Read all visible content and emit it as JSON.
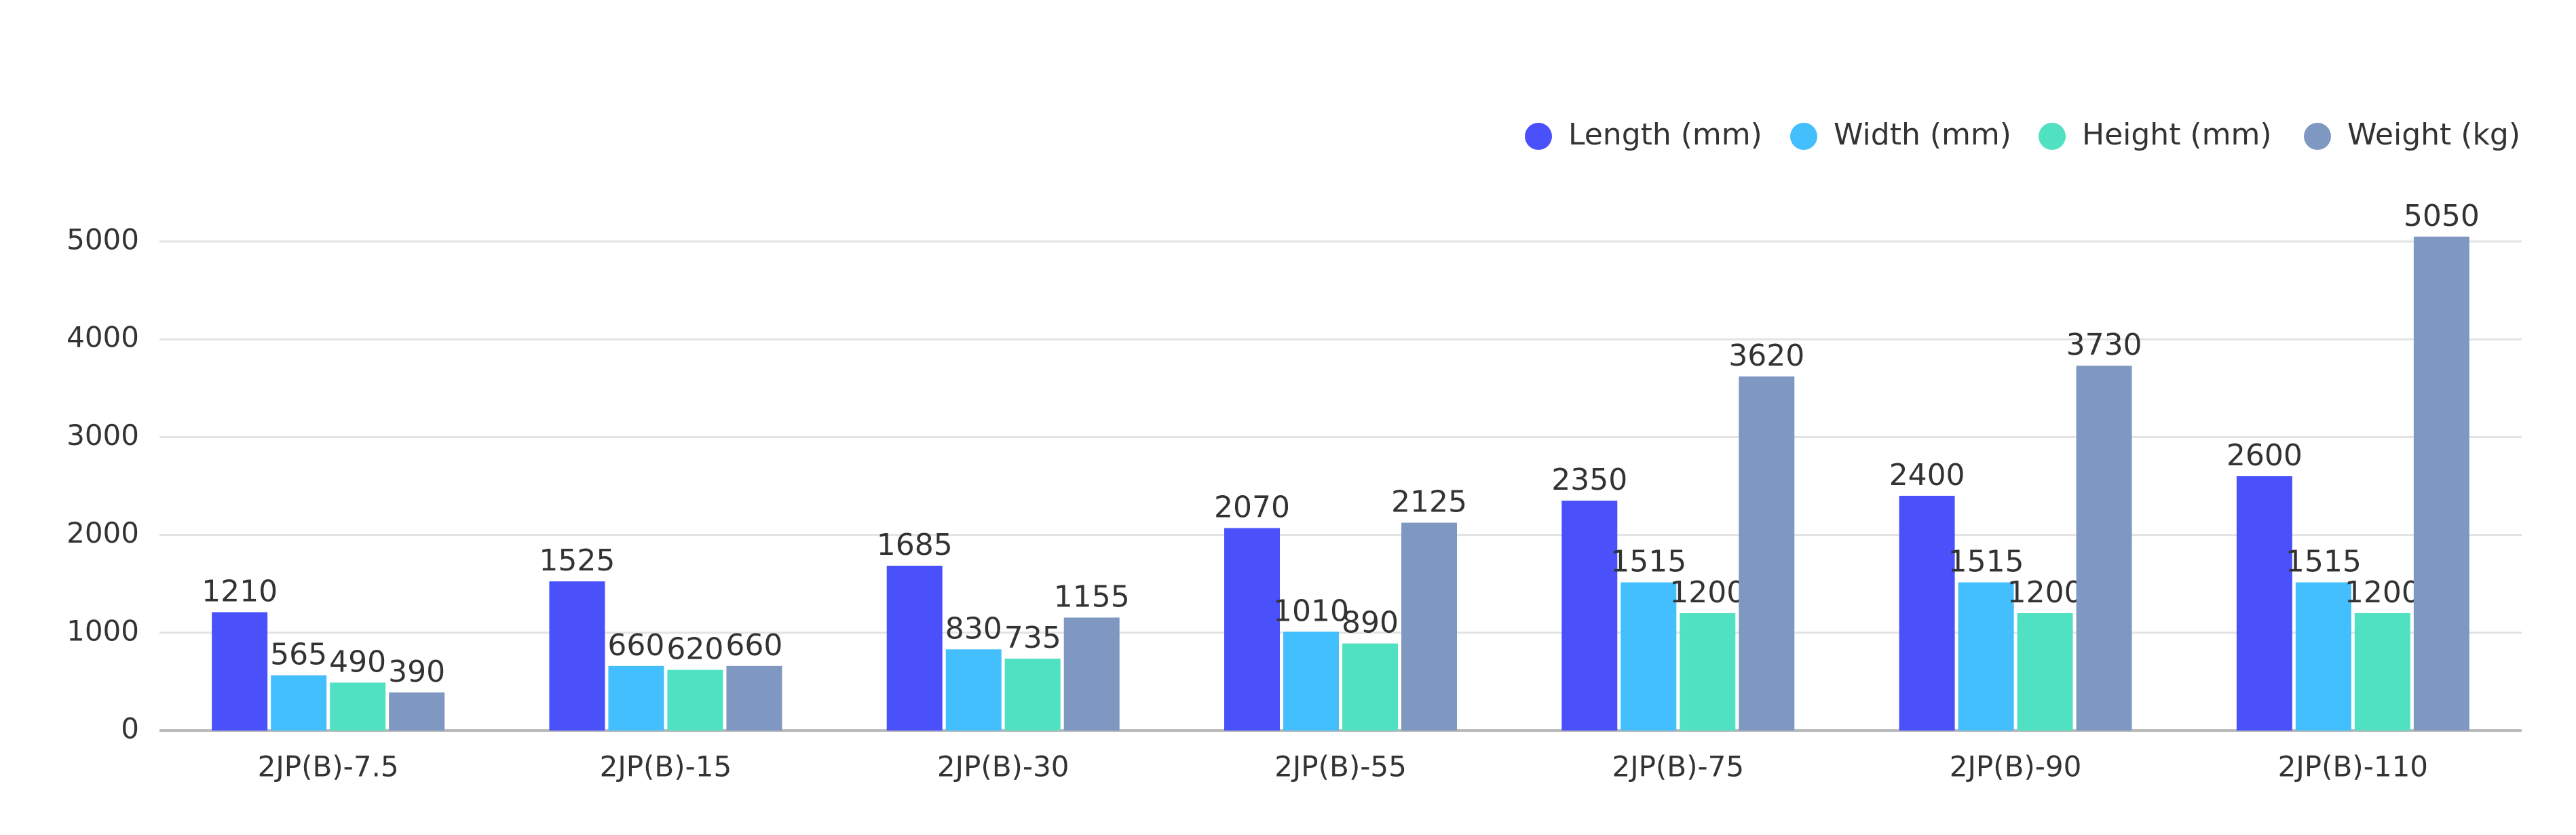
{
  "chart_data": {
    "type": "bar",
    "categories": [
      "2JP(B)-7.5",
      "2JP(B)-15",
      "2JP(B)-30",
      "2JP(B)-55",
      "2JP(B)-75",
      "2JP(B)-90",
      "2JP(B)-110"
    ],
    "series": [
      {
        "name": "Length (mm)",
        "color": "#4a50fa",
        "values": [
          1210,
          1525,
          1685,
          2070,
          2350,
          2400,
          2600
        ]
      },
      {
        "name": "Width (mm)",
        "color": "#42bffc",
        "values": [
          565,
          660,
          830,
          1010,
          1515,
          1515,
          1515
        ]
      },
      {
        "name": "Height (mm)",
        "color": "#4fe1c1",
        "values": [
          490,
          620,
          735,
          890,
          1200,
          1200,
          1200
        ]
      },
      {
        "name": "Weight (kg)",
        "color": "#7f98c1",
        "values": [
          390,
          660,
          1155,
          2125,
          3620,
          3730,
          5050
        ]
      }
    ],
    "ylim": [
      0,
      5000
    ],
    "yticks": [
      0,
      1000,
      2000,
      3000,
      4000,
      5000
    ],
    "grid": true,
    "legend": "top-right"
  }
}
